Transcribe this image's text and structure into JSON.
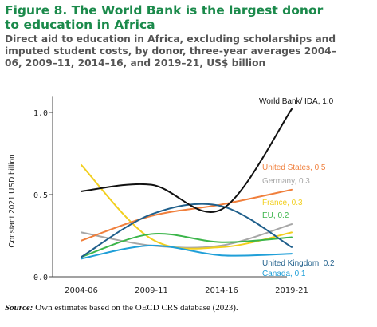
{
  "figure": {
    "title": "Figure 8. The World Bank is the largest donor to education in Africa",
    "subtitle": "Direct aid to education in Africa, excluding scholarships and imputed student costs, by donor, three-year averages 2004–06, 2009–11, 2014–16, and 2019–21, US$ billion",
    "source_label": "Source:",
    "source_text": " Own estimates based on the OECD CRS database (2023)."
  },
  "chart_data": {
    "type": "line",
    "ylabel": "Constant 2021 USD billion",
    "ylim": [
      0,
      1.1
    ],
    "yticks": [
      0,
      0.5,
      1.0
    ],
    "ytick_labels": [
      "0.0",
      "0.5",
      "1.0"
    ],
    "categories": [
      "2004-06",
      "2009-11",
      "2014-16",
      "2019-21"
    ],
    "grid": false,
    "series": [
      {
        "name": "World Bank/ IDA",
        "label": "World Bank/ IDA, 1.0",
        "color": "#111111",
        "values": [
          0.52,
          0.56,
          0.41,
          1.02
        ]
      },
      {
        "name": "United States",
        "label": "United States, 0.5",
        "color": "#f07f3c",
        "values": [
          0.22,
          0.37,
          0.44,
          0.53
        ]
      },
      {
        "name": "Germany",
        "label": "Germany, 0.3",
        "color": "#a6a6a6",
        "values": [
          0.27,
          0.19,
          0.19,
          0.32
        ]
      },
      {
        "name": "France",
        "label": "France, 0.3",
        "color": "#f2cf1f",
        "values": [
          0.68,
          0.23,
          0.18,
          0.27
        ]
      },
      {
        "name": "EU",
        "label": "EU, 0.2",
        "color": "#3bb54a",
        "values": [
          0.12,
          0.26,
          0.21,
          0.24
        ]
      },
      {
        "name": "United Kingdom",
        "label": "United Kingdom, 0.2",
        "color": "#1f5f8b",
        "values": [
          0.12,
          0.38,
          0.43,
          0.18
        ]
      },
      {
        "name": "Canada",
        "label": "Canada, 0.1",
        "color": "#1f9fd8",
        "values": [
          0.11,
          0.19,
          0.13,
          0.14
        ]
      }
    ]
  }
}
